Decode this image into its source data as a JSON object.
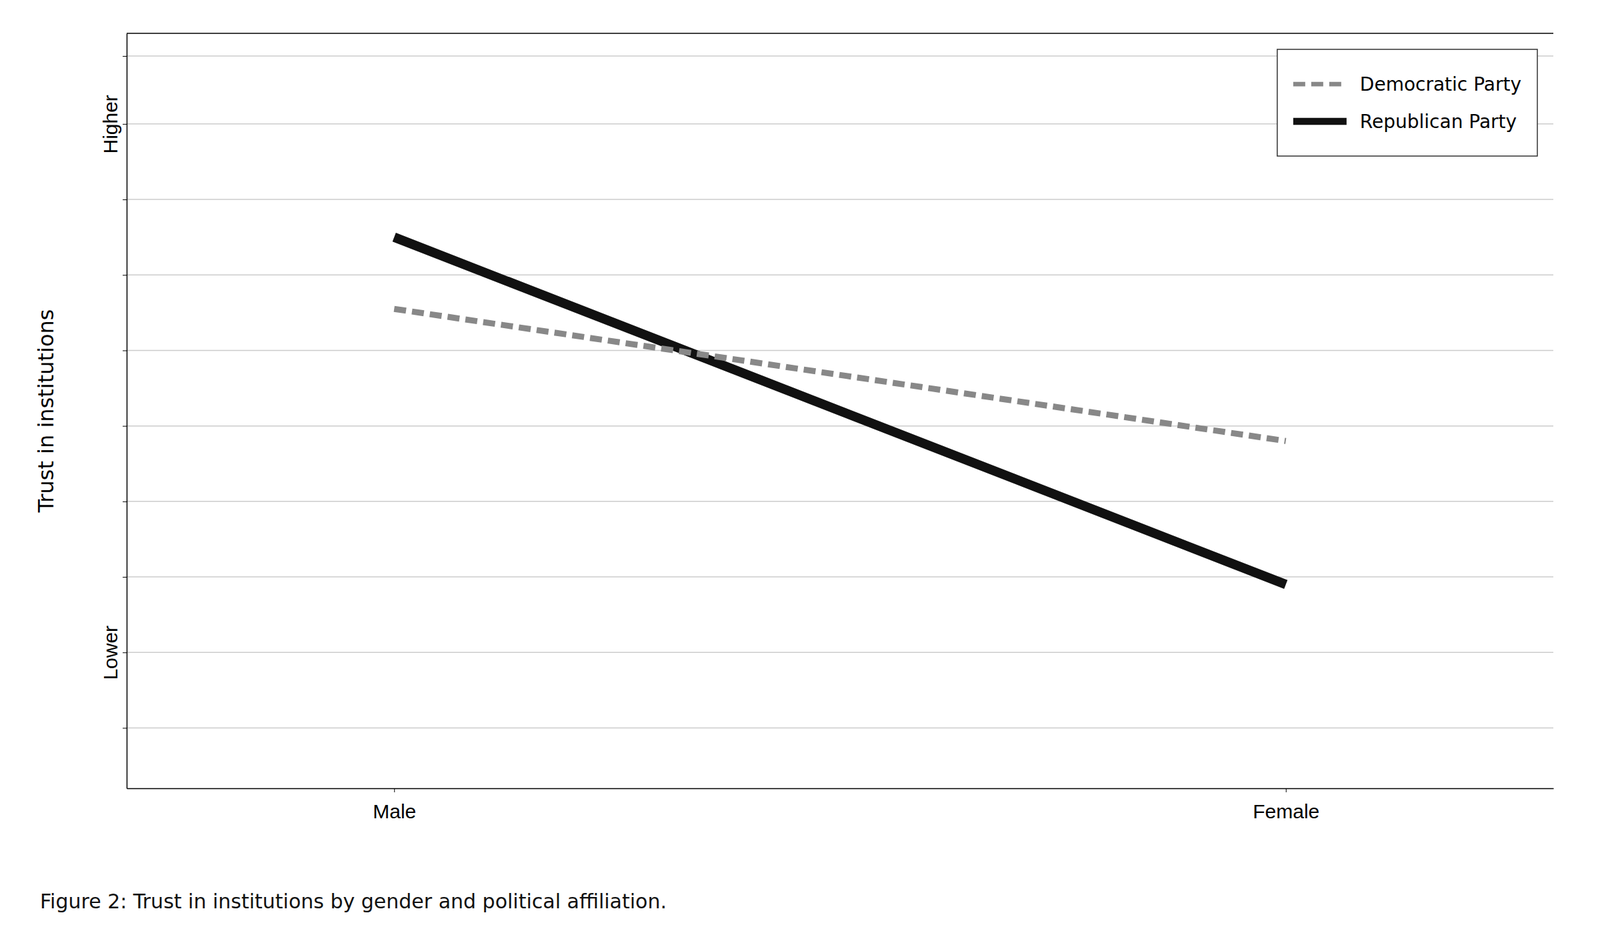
{
  "chart_data": {
    "type": "line",
    "categories": [
      "Male",
      "Female"
    ],
    "series": [
      {
        "name": "Democratic Party",
        "color": "#888888",
        "line_style": "dashed",
        "values": [
          0.635,
          0.46
        ]
      },
      {
        "name": "Republican Party",
        "color": "#111111",
        "line_style": "solid",
        "values": [
          0.73,
          0.27
        ]
      }
    ],
    "ylabel": "Trust in institutions",
    "caption": "Figure 2: Trust in institutions by gender and political affiliation.",
    "ylim": [
      0.0,
      1.0
    ],
    "yticks": [
      {
        "value": 0.08,
        "label": null
      },
      {
        "value": 0.18,
        "label": "Lower"
      },
      {
        "value": 0.28,
        "label": null
      },
      {
        "value": 0.38,
        "label": null
      },
      {
        "value": 0.48,
        "label": null
      },
      {
        "value": 0.58,
        "label": null
      },
      {
        "value": 0.68,
        "label": null
      },
      {
        "value": 0.78,
        "label": null
      },
      {
        "value": 0.88,
        "label": "Higher"
      },
      {
        "value": 0.97,
        "label": null
      }
    ],
    "grid": true,
    "legend": "upper right"
  }
}
